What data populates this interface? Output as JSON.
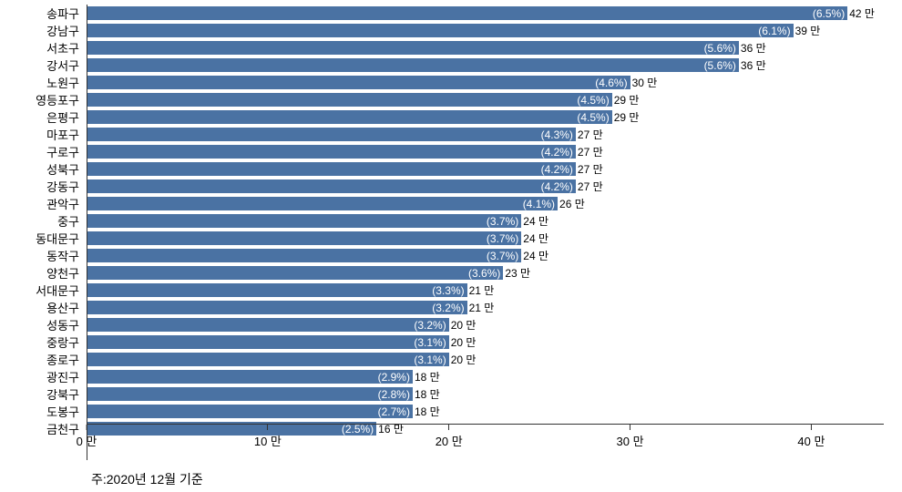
{
  "chart": {
    "type": "bar-horizontal",
    "bar_color": "#4a72a3",
    "background_color": "#ffffff",
    "pct_text_color": "#ffffff",
    "val_text_color": "#000000",
    "axis_color": "#333333",
    "max_value": 44,
    "unit_suffix": " 만",
    "x_ticks": [
      {
        "value": 0,
        "label": "0 만"
      },
      {
        "value": 10,
        "label": "10 만"
      },
      {
        "value": 20,
        "label": "20 만"
      },
      {
        "value": 30,
        "label": "30 만"
      },
      {
        "value": 40,
        "label": "40 만"
      }
    ],
    "bars": [
      {
        "label": "송파구",
        "value": 42,
        "pct": "(6.5%)",
        "val": "42 만"
      },
      {
        "label": "강남구",
        "value": 39,
        "pct": "(6.1%)",
        "val": "39 만"
      },
      {
        "label": "서초구",
        "value": 36,
        "pct": "(5.6%)",
        "val": "36 만"
      },
      {
        "label": "강서구",
        "value": 36,
        "pct": "(5.6%)",
        "val": "36 만"
      },
      {
        "label": "노원구",
        "value": 30,
        "pct": "(4.6%)",
        "val": "30 만"
      },
      {
        "label": "영등포구",
        "value": 29,
        "pct": "(4.5%)",
        "val": "29 만"
      },
      {
        "label": "은평구",
        "value": 29,
        "pct": "(4.5%)",
        "val": "29 만"
      },
      {
        "label": "마포구",
        "value": 27,
        "pct": "(4.3%)",
        "val": "27 만"
      },
      {
        "label": "구로구",
        "value": 27,
        "pct": "(4.2%)",
        "val": "27 만"
      },
      {
        "label": "성북구",
        "value": 27,
        "pct": "(4.2%)",
        "val": "27 만"
      },
      {
        "label": "강동구",
        "value": 27,
        "pct": "(4.2%)",
        "val": "27 만"
      },
      {
        "label": "관악구",
        "value": 26,
        "pct": "(4.1%)",
        "val": "26 만"
      },
      {
        "label": "중구",
        "value": 24,
        "pct": "(3.7%)",
        "val": "24 만"
      },
      {
        "label": "동대문구",
        "value": 24,
        "pct": "(3.7%)",
        "val": "24 만"
      },
      {
        "label": "동작구",
        "value": 24,
        "pct": "(3.7%)",
        "val": "24 만"
      },
      {
        "label": "양천구",
        "value": 23,
        "pct": "(3.6%)",
        "val": "23 만"
      },
      {
        "label": "서대문구",
        "value": 21,
        "pct": "(3.3%)",
        "val": "21 만"
      },
      {
        "label": "용산구",
        "value": 21,
        "pct": "(3.2%)",
        "val": "21 만"
      },
      {
        "label": "성동구",
        "value": 20,
        "pct": "(3.2%)",
        "val": "20 만"
      },
      {
        "label": "중랑구",
        "value": 20,
        "pct": "(3.1%)",
        "val": "20 만"
      },
      {
        "label": "종로구",
        "value": 20,
        "pct": "(3.1%)",
        "val": "20 만"
      },
      {
        "label": "광진구",
        "value": 18,
        "pct": "(2.9%)",
        "val": "18 만"
      },
      {
        "label": "강북구",
        "value": 18,
        "pct": "(2.8%)",
        "val": "18 만"
      },
      {
        "label": "도봉구",
        "value": 18,
        "pct": "(2.7%)",
        "val": "18 만"
      },
      {
        "label": "금천구",
        "value": 16,
        "pct": "(2.5%)",
        "val": "16 만"
      }
    ],
    "note": "주:2020년 12월 기준"
  }
}
